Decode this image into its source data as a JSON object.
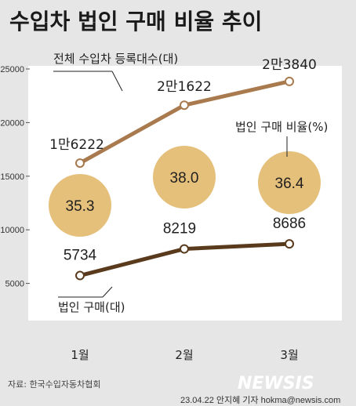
{
  "title": "수입차 법인 구매 비율 추이",
  "source": "자료: 한국수입자동차협회",
  "credit": "23.04.22 안지혜 기자 hokma@newsis.com",
  "logo": "NEWSIS",
  "colors": {
    "background": "#e6e6e6",
    "total_line": "#a87a4e",
    "corporate_line": "#5a3a1c",
    "ratio_circle": "#e5c07b"
  },
  "chart_data": {
    "type": "line",
    "title": "수입차 법인 구매 비율 추이",
    "categories": [
      "1월",
      "2월",
      "3월"
    ],
    "ylim": [
      0,
      25000
    ],
    "yticks": [
      5000,
      10000,
      15000,
      20000,
      25000
    ],
    "grid": false,
    "series": [
      {
        "name": "전체 수입차 등록대수(대)",
        "values": [
          16222,
          21622,
          23840
        ],
        "labels": [
          "1만6222",
          "2만1622",
          "2만3840"
        ],
        "color": "#a87a4e"
      },
      {
        "name": "법인 구매(대)",
        "values": [
          5734,
          8219,
          8686
        ],
        "labels": [
          "5734",
          "8219",
          "8686"
        ],
        "color": "#5a3a1c"
      }
    ],
    "ratio": {
      "name": "법인 구매 비율(%)",
      "values": [
        35.3,
        38.0,
        36.4
      ],
      "labels": [
        "35.3",
        "38.0",
        "36.4"
      ]
    }
  }
}
